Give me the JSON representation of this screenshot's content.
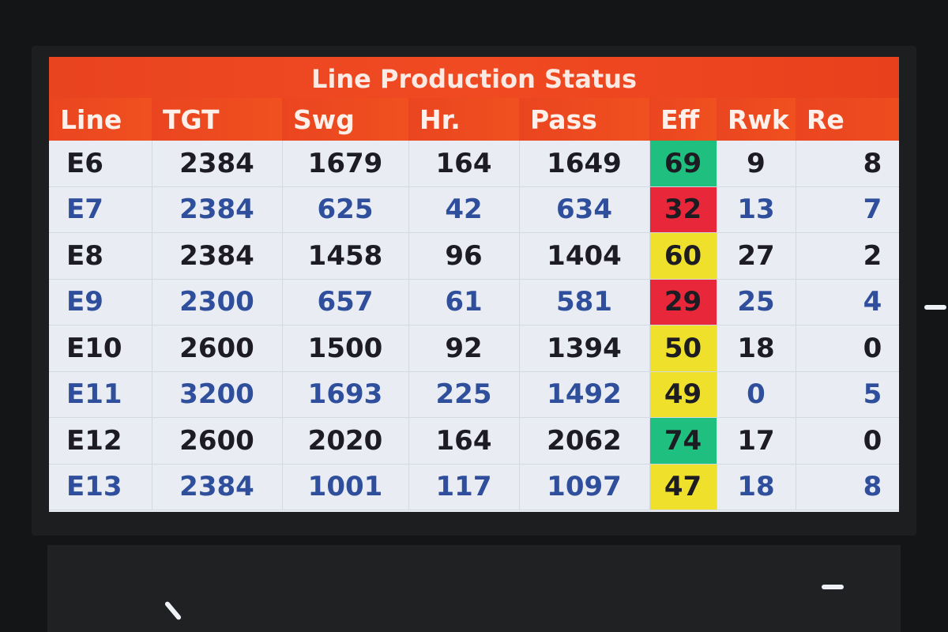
{
  "header": {
    "title": "Line Production Status"
  },
  "table": {
    "columns": [
      "Line",
      "TGT",
      "Swg",
      "Hr.",
      "Pass",
      "Eff",
      "Rwk",
      "Re"
    ],
    "rows": [
      [
        "E6",
        "2384",
        "1679",
        "164",
        "1649",
        "69",
        "9",
        "8"
      ],
      [
        "E7",
        "2384",
        "625",
        "42",
        "634",
        "32",
        "13",
        "7"
      ],
      [
        "E8",
        "2384",
        "1458",
        "96",
        "1404",
        "60",
        "27",
        "2"
      ],
      [
        "E9",
        "2300",
        "657",
        "61",
        "581",
        "29",
        "25",
        "4"
      ],
      [
        "E10",
        "2600",
        "1500",
        "92",
        "1394",
        "50",
        "18",
        "0"
      ],
      [
        "E11",
        "3200",
        "1693",
        "225",
        "1492",
        "49",
        "0",
        "5"
      ],
      [
        "E12",
        "2600",
        "2020",
        "164",
        "2062",
        "74",
        "17",
        "0"
      ],
      [
        "E13",
        "2384",
        "1001",
        "117",
        "1097",
        "47",
        "18",
        "8"
      ]
    ],
    "eff_colors": [
      "#1fbf80",
      "#e8283a",
      "#efe02c",
      "#e8283a",
      "#efe02c",
      "#efe02c",
      "#1fbf80",
      "#efe02c"
    ]
  }
}
